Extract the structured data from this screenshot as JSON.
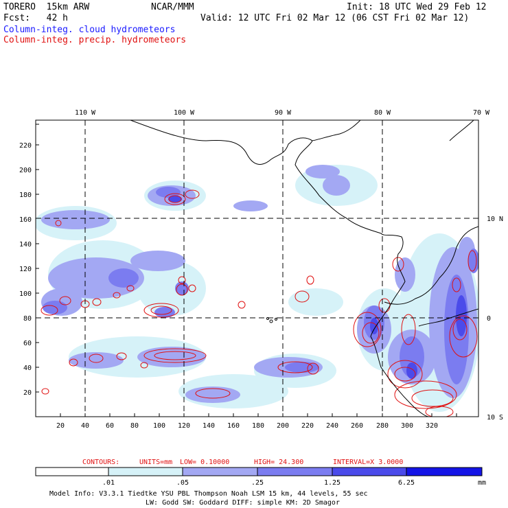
{
  "header": {
    "model": "TORERO  15km ARW",
    "center": "NCAR/MMM",
    "init": "Init: 18 UTC Wed 29 Feb 12",
    "fcst": "Fcst:   42 h",
    "valid": "Valid: 12 UTC Fri 02 Mar 12 (06 CST Fri 02 Mar 12)",
    "field1": "Column-integ. cloud hydrometeors",
    "field2": "Column-integ. precip. hydrometeors"
  },
  "colors": {
    "cloud_field": "#1a1aff",
    "precip_field": "#e01010"
  },
  "map": {
    "top_lon_labels": [
      "110 W",
      "100 W",
      "90 W",
      "80 W",
      "70 W"
    ],
    "right_lat_labels": [
      "10 N",
      "0",
      "10 S"
    ],
    "x_ticks": [
      "20",
      "40",
      "60",
      "80",
      "100",
      "120",
      "140",
      "160",
      "180",
      "200",
      "220",
      "240",
      "260",
      "280",
      "300",
      "320"
    ],
    "y_ticks": [
      "20",
      "40",
      "60",
      "80",
      "100",
      "120",
      "140",
      "160",
      "180",
      "200",
      "220"
    ]
  },
  "contours_info": {
    "contours": "CONTOURS:",
    "units": "UNITS=mm",
    "low": "LOW= 0.10000",
    "high": "HIGH=  24.300",
    "interval": "INTERVAL=X  3.0000"
  },
  "colorbar": {
    "labels": [
      ".01",
      ".05",
      ".25",
      "1.25",
      "6.25"
    ],
    "unit": "mm",
    "colors": [
      "#ffffff",
      "#d6f2f8",
      "#a3a8f3",
      "#7b7cf0",
      "#4b4bea",
      "#1414e6"
    ]
  },
  "footer": {
    "line1": "Model Info: V3.3.1   Tiedtke YSU PBL  Thompson    Noah LSM  15 km,   44 levels,   55 sec",
    "line2": "LW: Godd SW: Goddard DIFF: simple KM: 2D Smagor"
  }
}
